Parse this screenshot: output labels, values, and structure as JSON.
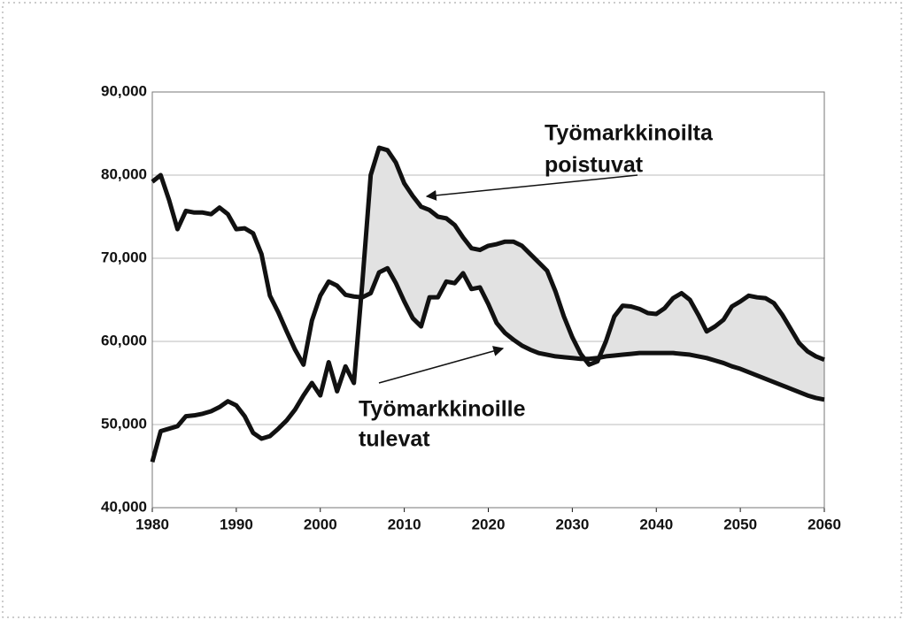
{
  "chart_data": {
    "type": "line",
    "x": [
      1980,
      1981,
      1982,
      1983,
      1984,
      1985,
      1986,
      1987,
      1988,
      1989,
      1990,
      1991,
      1992,
      1993,
      1994,
      1995,
      1996,
      1997,
      1998,
      1999,
      2000,
      2001,
      2002,
      2003,
      2004,
      2005,
      2006,
      2007,
      2008,
      2009,
      2010,
      2011,
      2012,
      2013,
      2014,
      2015,
      2016,
      2017,
      2018,
      2019,
      2020,
      2021,
      2022,
      2023,
      2024,
      2025,
      2026,
      2027,
      2028,
      2029,
      2030,
      2031,
      2032,
      2033,
      2034,
      2035,
      2036,
      2037,
      2038,
      2039,
      2040,
      2041,
      2042,
      2043,
      2044,
      2045,
      2046,
      2047,
      2048,
      2049,
      2050,
      2051,
      2052,
      2053,
      2054,
      2055,
      2056,
      2057,
      2058,
      2059,
      2060
    ],
    "series": [
      {
        "color": "#111111",
        "values": [
          45500,
          49200,
          49500,
          49800,
          51000,
          51100,
          51300,
          51600,
          52100,
          52800,
          52300,
          51000,
          49000,
          48300,
          48600,
          49500,
          50500,
          51800,
          53500,
          55000,
          53500,
          57500,
          54000,
          57000,
          55000,
          67000,
          80000,
          83300,
          83000,
          81500,
          79000,
          77500,
          76200,
          75800,
          75000,
          74800,
          74000,
          72500,
          71200,
          71000,
          71500,
          71700,
          72000,
          72000,
          71500,
          70500,
          69500,
          68500,
          66000,
          63000,
          60500,
          58500,
          57200,
          57600,
          60000,
          63000,
          64300,
          64200,
          63900,
          63400,
          63300,
          64000,
          65200,
          65800,
          65000,
          63200,
          61200,
          61800,
          62600,
          64200,
          64800,
          65500,
          65300,
          65200,
          64600,
          63200,
          61500,
          59800,
          58800,
          58200,
          57800
        ]
      },
      {
        "color": "#111111",
        "values": [
          79200,
          80000,
          77000,
          73500,
          75700,
          75500,
          75500,
          75300,
          76100,
          75300,
          73500,
          73600,
          73000,
          70500,
          65500,
          63500,
          61200,
          59000,
          57200,
          62500,
          65500,
          67200,
          66700,
          65600,
          65400,
          65300,
          65800,
          68300,
          68800,
          67000,
          64800,
          62800,
          61800,
          65300,
          65300,
          67200,
          67000,
          68200,
          66300,
          66500,
          64500,
          62200,
          61000,
          60200,
          59500,
          59000,
          58600,
          58400,
          58200,
          58100,
          58000,
          57900,
          57900,
          58000,
          58200,
          58300,
          58400,
          58500,
          58600,
          58600,
          58600,
          58600,
          58600,
          58500,
          58400,
          58200,
          58000,
          57700,
          57400,
          57000,
          56700,
          56300,
          55900,
          55500,
          55100,
          54700,
          54300,
          53900,
          53500,
          53200,
          53000
        ]
      }
    ],
    "fill_between": {
      "color": "#e2e2e2"
    },
    "annotations": [
      {
        "lines": [
          "Työmarkkinoilta",
          "poistuvat"
        ]
      },
      {
        "lines": [
          "Työmarkkinoille",
          "tulevat"
        ]
      }
    ],
    "xlim": [
      1980,
      2060
    ],
    "xticks": [
      1980,
      1990,
      2000,
      2010,
      2020,
      2030,
      2040,
      2050,
      2060
    ],
    "ylim": [
      40000,
      90000
    ],
    "yticks": [
      {
        "value": 40000,
        "label": "40,000"
      },
      {
        "value": 50000,
        "label": "50,000"
      },
      {
        "value": 60000,
        "label": "60,000"
      },
      {
        "value": 70000,
        "label": "70,000"
      },
      {
        "value": 80000,
        "label": "80,000"
      },
      {
        "value": 90000,
        "label": "90,000"
      }
    ],
    "grid": true
  }
}
